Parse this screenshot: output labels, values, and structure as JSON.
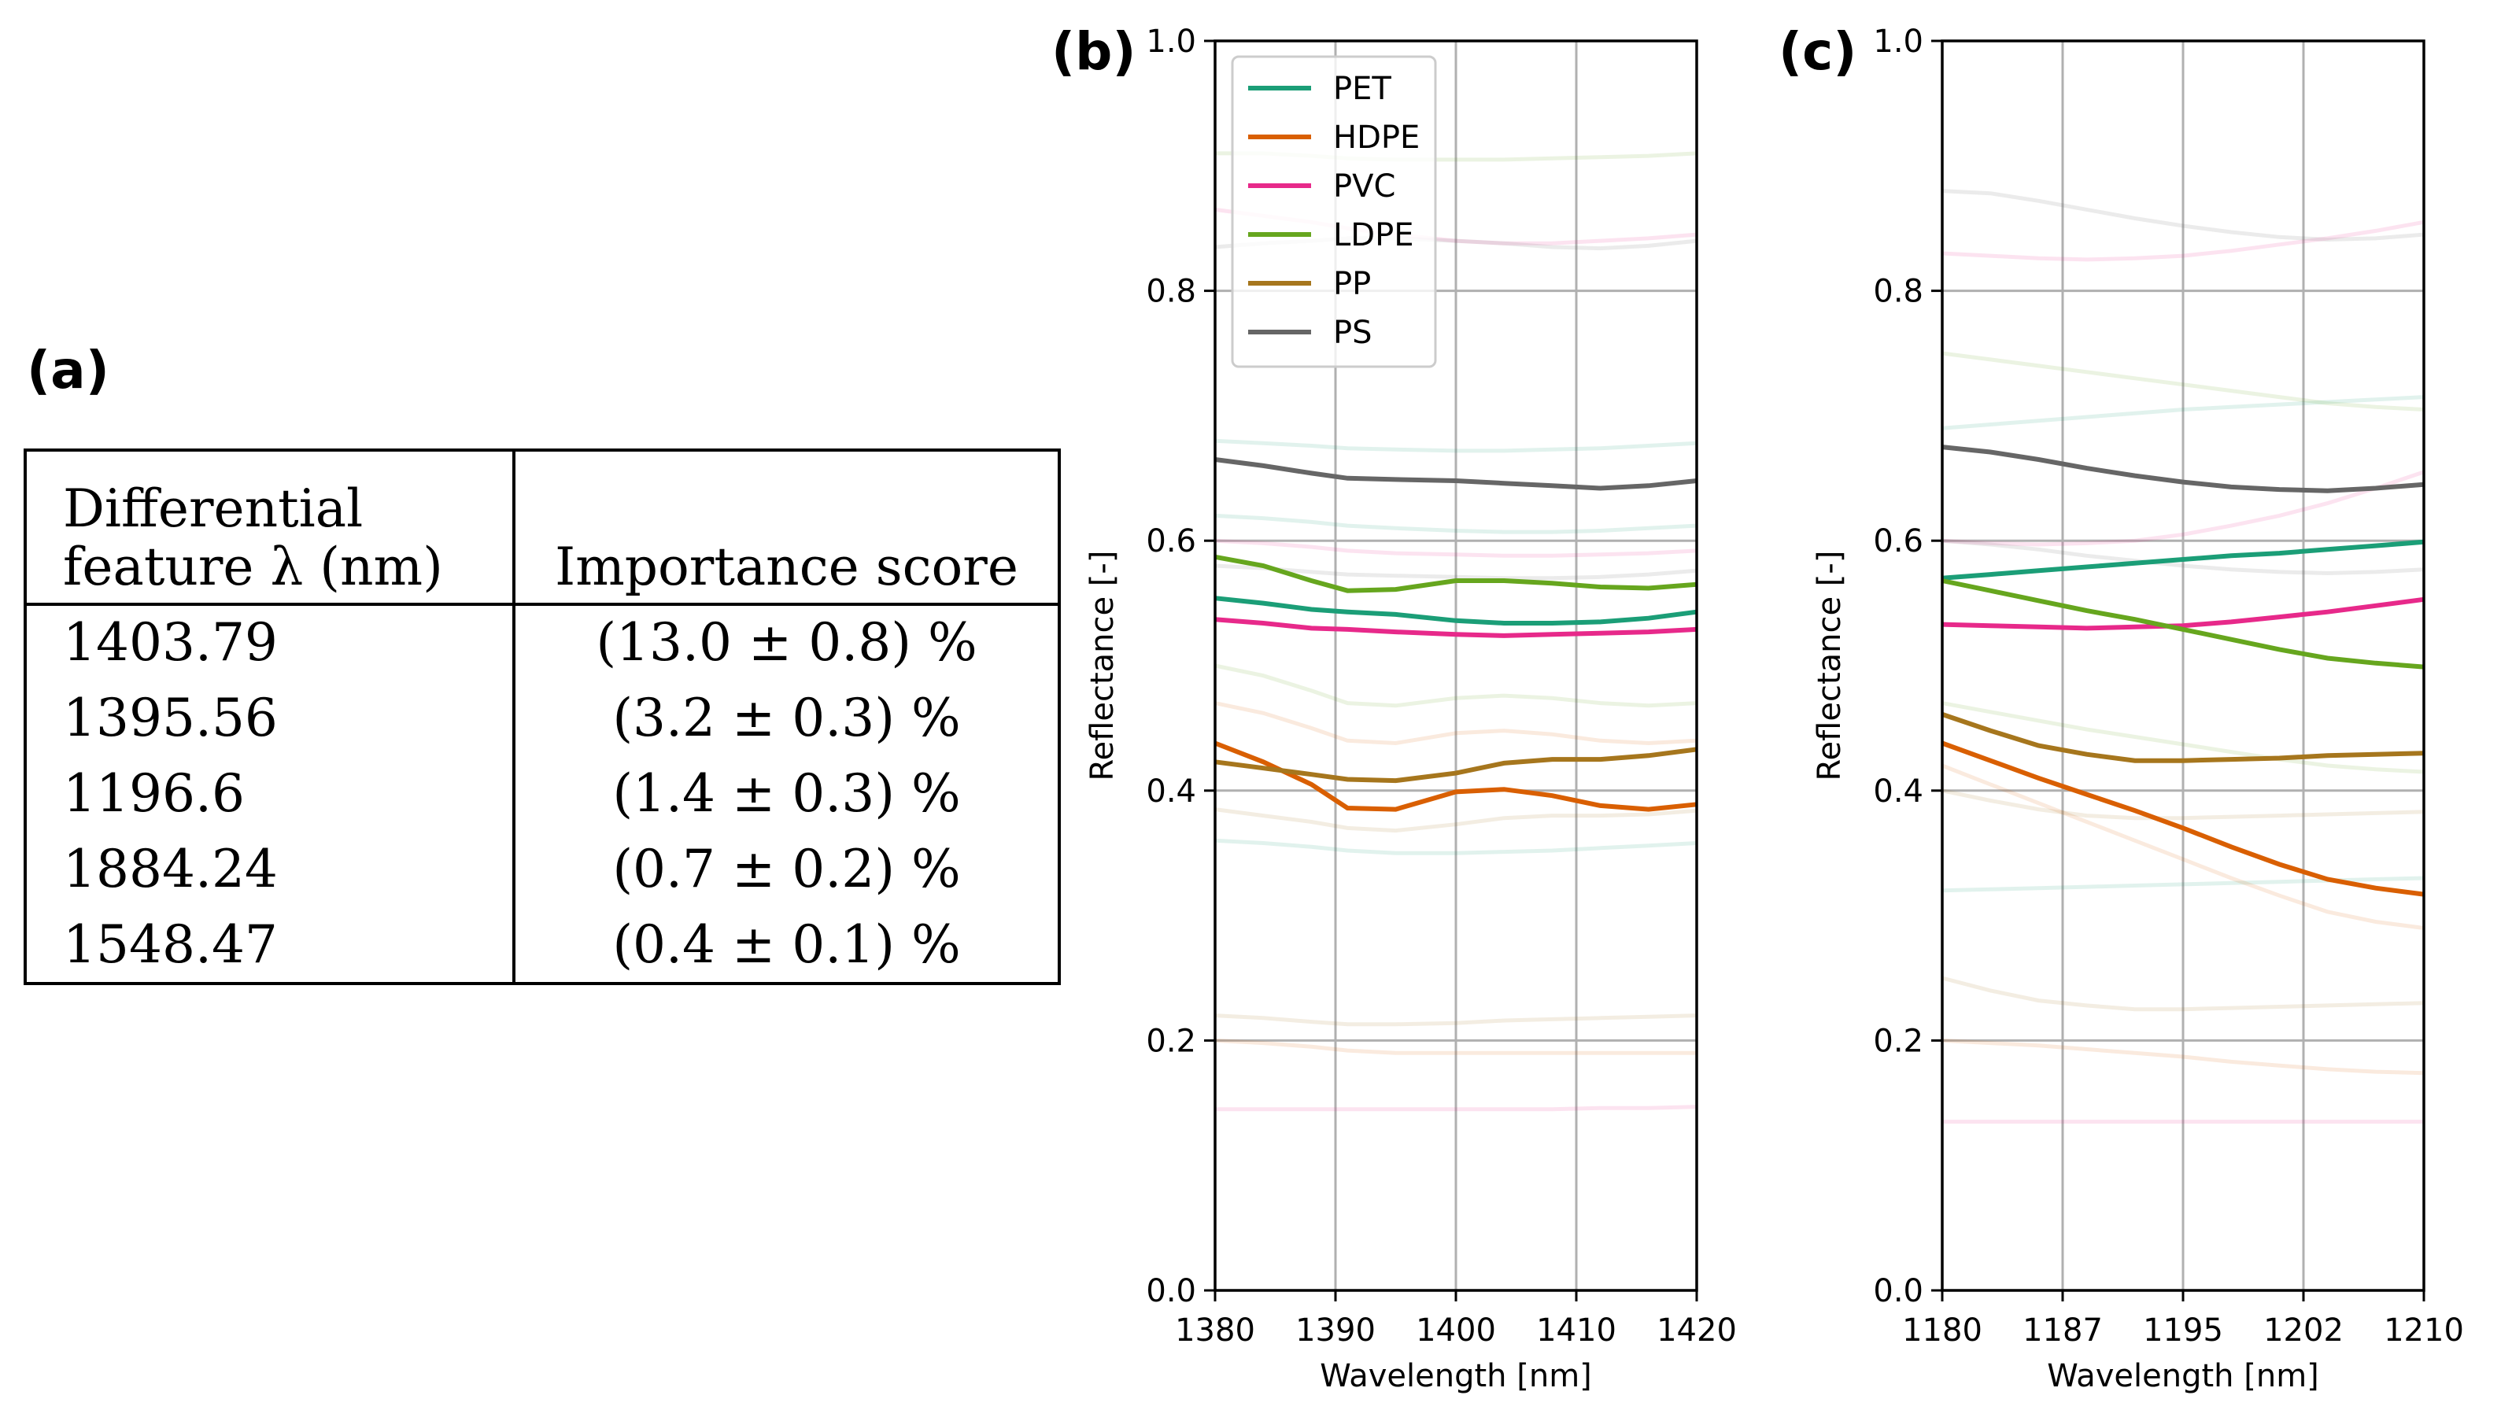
{
  "panel_a": {
    "label": "(a)",
    "table": {
      "header_col1_line1": "Differential",
      "header_col1_line2": "feature λ (nm)",
      "header_col2": "Importance score",
      "rows": [
        {
          "wavelength": "1403.79",
          "score": "(13.0 ± 0.8) %"
        },
        {
          "wavelength": "1395.56",
          "score": "(3.2 ± 0.3) %"
        },
        {
          "wavelength": "1196.6",
          "score": "(1.4 ± 0.3) %"
        },
        {
          "wavelength": "1884.24",
          "score": "(0.7 ± 0.2) %"
        },
        {
          "wavelength": "1548.47",
          "score": "(0.4 ± 0.1) %"
        }
      ]
    }
  },
  "colors": {
    "PET": "#1b9e77",
    "HDPE": "#d95f02",
    "PVC": "#e7298a",
    "LDPE": "#66a61e",
    "PP": "#a6761d",
    "PS": "#666666",
    "grid": "#b0b0b0"
  },
  "chart_data": [
    {
      "panel": "(b)",
      "type": "line",
      "title": "",
      "xlabel": "Wavelength [nm]",
      "ylabel": "Reflectance [-]",
      "xlim": [
        1380,
        1420
      ],
      "ylim": [
        0.0,
        1.0
      ],
      "xticks": [
        1380,
        1390,
        1400,
        1410,
        1420
      ],
      "xtick_labels": [
        "1380",
        "1390",
        "1400",
        "1410",
        "1420"
      ],
      "yticks": [
        0.0,
        0.2,
        0.4,
        0.6,
        0.8,
        1.0
      ],
      "ytick_labels": [
        "0.0",
        "0.2",
        "0.4",
        "0.6",
        "0.8",
        "1.0"
      ],
      "grid": true,
      "legend": {
        "placement": "top-left",
        "entries": [
          "PET",
          "HDPE",
          "PVC",
          "LDPE",
          "PP",
          "PS"
        ]
      },
      "x": [
        1380,
        1384,
        1388,
        1391,
        1395,
        1400,
        1404,
        1408,
        1412,
        1416,
        1420
      ],
      "series": [
        {
          "name": "PET",
          "values": [
            0.554,
            0.55,
            0.545,
            0.543,
            0.541,
            0.536,
            0.534,
            0.534,
            0.535,
            0.538,
            0.543
          ]
        },
        {
          "name": "HDPE",
          "values": [
            0.438,
            0.423,
            0.405,
            0.386,
            0.385,
            0.399,
            0.401,
            0.396,
            0.388,
            0.385,
            0.389
          ]
        },
        {
          "name": "PVC",
          "values": [
            0.537,
            0.534,
            0.53,
            0.529,
            0.527,
            0.525,
            0.524,
            0.525,
            0.526,
            0.527,
            0.529
          ]
        },
        {
          "name": "LDPE",
          "values": [
            0.587,
            0.58,
            0.568,
            0.56,
            0.561,
            0.568,
            0.568,
            0.566,
            0.563,
            0.562,
            0.565
          ]
        },
        {
          "name": "PP",
          "values": [
            0.423,
            0.418,
            0.413,
            0.409,
            0.408,
            0.414,
            0.422,
            0.425,
            0.425,
            0.428,
            0.433
          ]
        },
        {
          "name": "PS",
          "values": [
            0.665,
            0.66,
            0.654,
            0.65,
            0.649,
            0.648,
            0.646,
            0.644,
            0.642,
            0.644,
            0.648
          ]
        }
      ],
      "background_series": [
        {
          "group": "PET",
          "values": [
            0.62,
            0.618,
            0.615,
            0.612,
            0.61,
            0.608,
            0.607,
            0.607,
            0.608,
            0.61,
            0.612
          ]
        },
        {
          "group": "PET",
          "values": [
            0.68,
            0.678,
            0.676,
            0.674,
            0.673,
            0.672,
            0.672,
            0.673,
            0.674,
            0.676,
            0.678
          ]
        },
        {
          "group": "PET",
          "values": [
            0.36,
            0.358,
            0.355,
            0.352,
            0.35,
            0.35,
            0.351,
            0.352,
            0.354,
            0.356,
            0.358
          ]
        },
        {
          "group": "HDPE",
          "values": [
            0.47,
            0.462,
            0.45,
            0.44,
            0.438,
            0.446,
            0.448,
            0.445,
            0.44,
            0.438,
            0.44
          ]
        },
        {
          "group": "HDPE",
          "values": [
            0.2,
            0.198,
            0.195,
            0.192,
            0.19,
            0.19,
            0.19,
            0.19,
            0.19,
            0.19,
            0.19
          ]
        },
        {
          "group": "PVC",
          "values": [
            0.865,
            0.86,
            0.855,
            0.85,
            0.845,
            0.84,
            0.838,
            0.838,
            0.84,
            0.842,
            0.845
          ]
        },
        {
          "group": "PVC",
          "values": [
            0.145,
            0.145,
            0.145,
            0.145,
            0.145,
            0.145,
            0.145,
            0.145,
            0.146,
            0.146,
            0.147
          ]
        },
        {
          "group": "PVC",
          "values": [
            0.6,
            0.598,
            0.595,
            0.592,
            0.59,
            0.589,
            0.588,
            0.588,
            0.589,
            0.59,
            0.592
          ]
        },
        {
          "group": "LDPE",
          "values": [
            0.91,
            0.91,
            0.908,
            0.906,
            0.905,
            0.905,
            0.905,
            0.906,
            0.907,
            0.908,
            0.91
          ]
        },
        {
          "group": "LDPE",
          "values": [
            0.5,
            0.492,
            0.48,
            0.47,
            0.468,
            0.474,
            0.476,
            0.474,
            0.47,
            0.468,
            0.47
          ]
        },
        {
          "group": "PP",
          "values": [
            0.22,
            0.218,
            0.215,
            0.213,
            0.213,
            0.214,
            0.216,
            0.217,
            0.218,
            0.219,
            0.22
          ]
        },
        {
          "group": "PP",
          "values": [
            0.385,
            0.38,
            0.375,
            0.37,
            0.368,
            0.373,
            0.378,
            0.38,
            0.38,
            0.381,
            0.384
          ]
        },
        {
          "group": "PS",
          "values": [
            0.835,
            0.838,
            0.84,
            0.842,
            0.842,
            0.84,
            0.838,
            0.835,
            0.834,
            0.836,
            0.84
          ]
        },
        {
          "group": "PS",
          "values": [
            0.58,
            0.578,
            0.575,
            0.573,
            0.572,
            0.571,
            0.57,
            0.57,
            0.571,
            0.573,
            0.576
          ]
        }
      ]
    },
    {
      "panel": "(c)",
      "type": "line",
      "title": "",
      "xlabel": "Wavelength [nm]",
      "ylabel": "Reflectance [-]",
      "xlim": [
        1180,
        1210
      ],
      "ylim": [
        0.0,
        1.0
      ],
      "xticks": [
        1180,
        1187.5,
        1195,
        1202.5,
        1210
      ],
      "xtick_labels": [
        "1180",
        "1187",
        "1195",
        "1202",
        "1210"
      ],
      "yticks": [
        0.0,
        0.2,
        0.4,
        0.6,
        0.8,
        1.0
      ],
      "ytick_labels": [
        "0.0",
        "0.2",
        "0.4",
        "0.6",
        "0.8",
        "1.0"
      ],
      "grid": true,
      "x": [
        1180,
        1183,
        1186,
        1189,
        1192,
        1195,
        1198,
        1201,
        1204,
        1207,
        1210
      ],
      "series": [
        {
          "name": "PET",
          "values": [
            0.57,
            0.573,
            0.576,
            0.579,
            0.582,
            0.585,
            0.588,
            0.59,
            0.593,
            0.596,
            0.599
          ]
        },
        {
          "name": "HDPE",
          "values": [
            0.438,
            0.424,
            0.41,
            0.397,
            0.384,
            0.37,
            0.355,
            0.341,
            0.329,
            0.322,
            0.317
          ]
        },
        {
          "name": "PVC",
          "values": [
            0.533,
            0.532,
            0.531,
            0.53,
            0.531,
            0.532,
            0.535,
            0.539,
            0.543,
            0.548,
            0.553
          ]
        },
        {
          "name": "LDPE",
          "values": [
            0.568,
            0.56,
            0.552,
            0.544,
            0.537,
            0.529,
            0.521,
            0.513,
            0.506,
            0.502,
            0.499
          ]
        },
        {
          "name": "PP",
          "values": [
            0.461,
            0.448,
            0.436,
            0.429,
            0.424,
            0.424,
            0.425,
            0.426,
            0.428,
            0.429,
            0.43
          ]
        },
        {
          "name": "PS",
          "values": [
            0.675,
            0.671,
            0.665,
            0.658,
            0.652,
            0.647,
            0.643,
            0.641,
            0.64,
            0.642,
            0.645
          ]
        }
      ],
      "background_series": [
        {
          "group": "PET",
          "values": [
            0.69,
            0.693,
            0.696,
            0.699,
            0.702,
            0.705,
            0.707,
            0.709,
            0.711,
            0.713,
            0.715
          ]
        },
        {
          "group": "PET",
          "values": [
            0.32,
            0.321,
            0.322,
            0.323,
            0.324,
            0.325,
            0.326,
            0.327,
            0.328,
            0.329,
            0.33
          ]
        },
        {
          "group": "HDPE",
          "values": [
            0.2,
            0.198,
            0.196,
            0.193,
            0.19,
            0.187,
            0.183,
            0.18,
            0.177,
            0.175,
            0.174
          ]
        },
        {
          "group": "HDPE",
          "values": [
            0.42,
            0.405,
            0.39,
            0.375,
            0.36,
            0.345,
            0.33,
            0.316,
            0.303,
            0.295,
            0.29
          ]
        },
        {
          "group": "PVC",
          "values": [
            0.83,
            0.828,
            0.826,
            0.825,
            0.826,
            0.828,
            0.832,
            0.837,
            0.842,
            0.848,
            0.855
          ]
        },
        {
          "group": "PVC",
          "values": [
            0.135,
            0.135,
            0.135,
            0.135,
            0.135,
            0.135,
            0.135,
            0.135,
            0.135,
            0.135,
            0.135
          ]
        },
        {
          "group": "PVC",
          "values": [
            0.6,
            0.598,
            0.597,
            0.598,
            0.6,
            0.605,
            0.612,
            0.62,
            0.63,
            0.642,
            0.655
          ]
        },
        {
          "group": "LDPE",
          "values": [
            0.75,
            0.745,
            0.74,
            0.735,
            0.73,
            0.725,
            0.72,
            0.715,
            0.71,
            0.707,
            0.705
          ]
        },
        {
          "group": "LDPE",
          "values": [
            0.47,
            0.463,
            0.456,
            0.449,
            0.443,
            0.437,
            0.431,
            0.425,
            0.42,
            0.417,
            0.415
          ]
        },
        {
          "group": "PP",
          "values": [
            0.25,
            0.24,
            0.232,
            0.228,
            0.225,
            0.225,
            0.226,
            0.227,
            0.228,
            0.229,
            0.23
          ]
        },
        {
          "group": "PP",
          "values": [
            0.4,
            0.392,
            0.385,
            0.38,
            0.378,
            0.378,
            0.379,
            0.38,
            0.381,
            0.382,
            0.383
          ]
        },
        {
          "group": "PS",
          "values": [
            0.88,
            0.878,
            0.872,
            0.865,
            0.858,
            0.852,
            0.847,
            0.843,
            0.841,
            0.842,
            0.845
          ]
        },
        {
          "group": "PS",
          "values": [
            0.6,
            0.597,
            0.593,
            0.588,
            0.584,
            0.58,
            0.577,
            0.575,
            0.574,
            0.575,
            0.577
          ]
        }
      ]
    }
  ]
}
